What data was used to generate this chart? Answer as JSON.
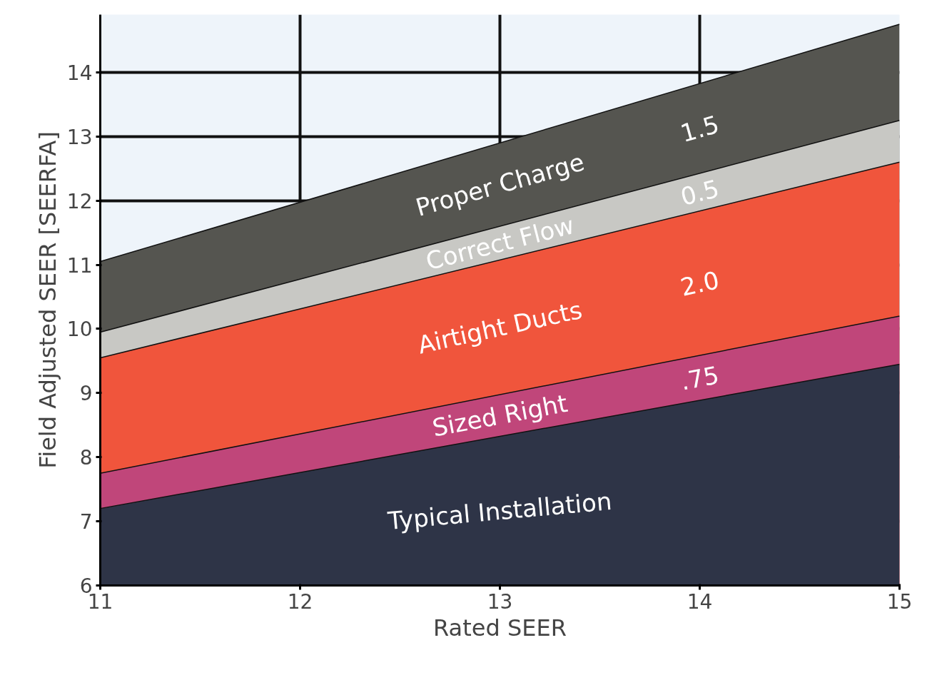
{
  "chart_data": {
    "type": "area",
    "xlabel": "Rated SEER",
    "ylabel": "Field Adjusted SEER [SEERFA]",
    "x": [
      11,
      15
    ],
    "series": [
      {
        "name": "Typical Installation",
        "color": "#2e3447",
        "values": [
          7.2,
          9.45
        ]
      },
      {
        "name": "Sized Right",
        "color": "#c0467a",
        "values": [
          7.75,
          10.2
        ]
      },
      {
        "name": "Airtight Ducts",
        "color": "#f0553c",
        "values": [
          9.55,
          12.6
        ]
      },
      {
        "name": "Correct Flow",
        "color": "#c8c8c4",
        "values": [
          9.95,
          13.25
        ]
      },
      {
        "name": "Proper Charge",
        "color": "#555550",
        "values": [
          11.05,
          14.75
        ]
      }
    ],
    "annotations": [
      "1.5",
      "0.5",
      "2.0",
      ".75"
    ],
    "xlim": [
      11,
      15
    ],
    "ylim": [
      6,
      14.9
    ],
    "xticks": [
      11,
      12,
      13,
      14,
      15
    ],
    "yticks": [
      6,
      7,
      8,
      9,
      10,
      11,
      12,
      13,
      14
    ],
    "grid": true
  }
}
